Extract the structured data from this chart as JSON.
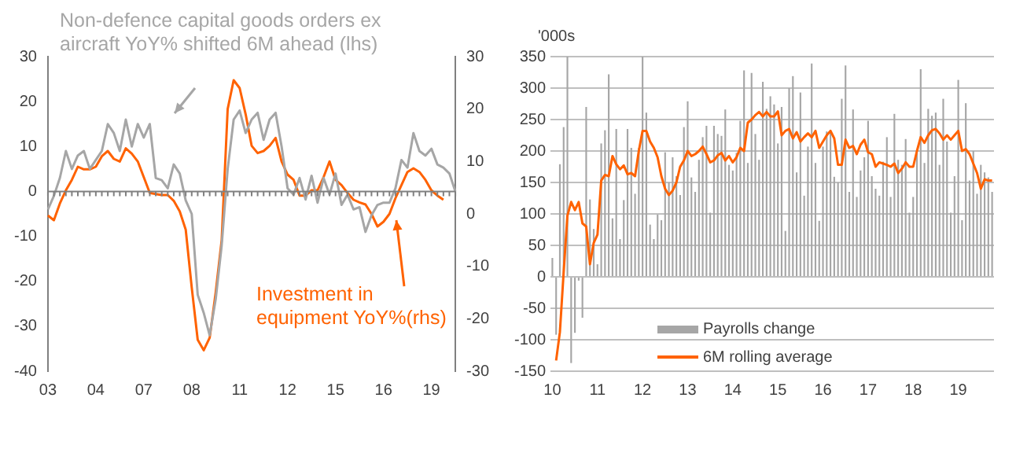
{
  "chart_data": [
    {
      "type": "line",
      "categories": [
        "03",
        null,
        null,
        null,
        null,
        null,
        null,
        null,
        "04",
        null,
        null,
        null,
        null,
        null,
        null,
        null,
        "07",
        null,
        null,
        null,
        null,
        null,
        null,
        null,
        "08",
        null,
        null,
        null,
        null,
        null,
        null,
        null,
        "11",
        null,
        null,
        null,
        null,
        null,
        null,
        null,
        "12",
        null,
        null,
        null,
        null,
        null,
        null,
        null,
        "15",
        null,
        null,
        null,
        null,
        null,
        null,
        null,
        "16",
        null,
        null,
        null,
        null,
        null,
        null,
        null,
        "19",
        null,
        null,
        null,
        null
      ],
      "series": [
        {
          "color": "#a6a6a6",
          "axis": "y",
          "values": [
            -4,
            -1,
            3,
            9,
            5,
            8,
            9,
            5,
            7,
            9,
            15,
            13,
            9,
            16,
            10,
            15,
            12,
            15,
            3,
            2.5,
            0.7,
            6,
            4,
            -2,
            -5,
            -23,
            -27,
            -32,
            -24,
            -12,
            5,
            16,
            18,
            13,
            16,
            17.5,
            11.5,
            16,
            17.5,
            10,
            0.7,
            -0.7,
            3,
            -1.8,
            3.5,
            -2.5,
            3,
            -0.7,
            4,
            -3,
            -0.7,
            -4,
            -3.5,
            -9,
            -5.3,
            -3,
            -2.5,
            -2.5,
            0.7,
            7,
            5.3,
            13,
            9,
            8,
            9.5,
            6,
            5.3,
            4,
            0
          ]
        },
        {
          "color": "#ff6200",
          "axis": "y2",
          "values": [
            -0.3,
            -1.2,
            2,
            4.5,
            6.5,
            9,
            8.5,
            8.5,
            9,
            11,
            12,
            10.5,
            10,
            12.5,
            11.5,
            10,
            7,
            4,
            3.8,
            3.6,
            3.6,
            2.5,
            0.5,
            -3,
            -14,
            -24,
            -26,
            -23.6,
            -15,
            -5,
            20,
            25.5,
            24,
            19,
            13,
            11.6,
            12,
            13,
            14.5,
            10,
            7.5,
            6.5,
            3.5,
            3.5,
            4.5,
            4.5,
            7,
            10,
            6.5,
            5.5,
            4,
            2.7,
            2.2,
            1.8,
            0,
            -2.4,
            -1.5,
            0,
            3,
            5.5,
            8,
            8.7,
            8,
            6.5,
            4.5,
            3.5,
            2.7,
            null,
            null
          ]
        }
      ],
      "ylim": [
        -40,
        30
      ],
      "yticks": [
        -40,
        -30,
        -20,
        -10,
        0,
        10,
        20,
        30
      ],
      "y2lim": [
        -30,
        30
      ],
      "y2ticks": [
        -30,
        -20,
        -10,
        0,
        10,
        20,
        30
      ],
      "ref_lines": [
        {
          "axis": "y",
          "value": 0
        }
      ],
      "annotations": [
        "Non-defence capital goods orders ex aircraft YoY% shifted 6M ahead (lhs)",
        "Investment in equipment YoY%(rhs)"
      ],
      "grid": false,
      "legend": false
    },
    {
      "type": "bar",
      "ylabel": "'000s",
      "categories": [
        "10",
        null,
        null,
        null,
        null,
        null,
        null,
        null,
        null,
        null,
        null,
        null,
        "11",
        null,
        null,
        null,
        null,
        null,
        null,
        null,
        null,
        null,
        null,
        null,
        "12",
        null,
        null,
        null,
        null,
        null,
        null,
        null,
        null,
        null,
        null,
        null,
        "13",
        null,
        null,
        null,
        null,
        null,
        null,
        null,
        null,
        null,
        null,
        null,
        "14",
        null,
        null,
        null,
        null,
        null,
        null,
        null,
        null,
        null,
        null,
        null,
        "15",
        null,
        null,
        null,
        null,
        null,
        null,
        null,
        null,
        null,
        null,
        null,
        "16",
        null,
        null,
        null,
        null,
        null,
        null,
        null,
        null,
        null,
        null,
        null,
        "17",
        null,
        null,
        null,
        null,
        null,
        null,
        null,
        null,
        null,
        null,
        null,
        "18",
        null,
        null,
        null,
        null,
        null,
        null,
        null,
        null,
        null,
        null,
        null,
        "19",
        null,
        null,
        null,
        null,
        null,
        null,
        null,
        null,
        null
      ],
      "series": [
        {
          "name": "Payrolls change",
          "type": "bar",
          "color": "#a6a6a6",
          "values": [
            30,
            -92,
            179,
            238,
            350,
            -137,
            -89,
            -6,
            -65,
            270,
            123,
            76,
            20,
            212,
            233,
            322,
            93,
            235,
            60,
            122,
            235,
            205,
            132,
            205,
            350,
            261,
            83,
            60,
            99,
            90,
            198,
            150,
            190,
            160,
            130,
            238,
            279,
            158,
            135,
            186,
            222,
            240,
            102,
            240,
            227,
            224,
            266,
            178,
            169,
            197,
            248,
            328,
            181,
            324,
            227,
            186,
            310,
            267,
            287,
            274,
            212,
            270,
            73,
            300,
            319,
            166,
            293,
            129,
            207,
            339,
            181,
            89,
            207,
            231,
            233,
            159,
            150,
            283,
            336,
            135,
            266,
            127,
            169,
            190,
            248,
            160,
            140,
            129,
            183,
            222,
            127,
            259,
            186,
            178,
            219,
            102,
            127,
            197,
            330,
            181,
            267,
            256,
            261,
            178,
            283,
            215,
            102,
            160,
            313,
            90,
            276,
            153,
            200,
            132,
            178,
            166,
            158,
            135
          ]
        },
        {
          "name": "6M rolling average",
          "type": "line",
          "color": "#ff6200",
          "values": [
            null,
            -133,
            -88,
            7,
            97,
            119,
            106,
            119,
            85,
            80,
            20,
            54,
            67,
            153,
            162,
            160,
            192,
            179,
            171,
            177,
            163,
            165,
            160,
            200,
            232,
            232,
            215,
            205,
            190,
            160,
            140,
            130,
            137,
            150,
            175,
            185,
            200,
            192,
            195,
            200,
            207,
            195,
            182,
            185,
            193,
            197,
            185,
            192,
            182,
            190,
            205,
            200,
            245,
            250,
            257,
            262,
            255,
            262,
            255,
            255,
            263,
            225,
            232,
            235,
            220,
            230,
            215,
            222,
            228,
            222,
            232,
            205,
            215,
            225,
            232,
            220,
            178,
            178,
            218,
            205,
            208,
            195,
            210,
            218,
            198,
            195,
            175,
            182,
            180,
            178,
            175,
            180,
            165,
            172,
            182,
            175,
            175,
            200,
            222,
            213,
            225,
            233,
            235,
            228,
            218,
            225,
            218,
            225,
            232,
            200,
            203,
            195,
            180,
            165,
            140,
            155,
            153,
            153
          ]
        }
      ],
      "ylim": [
        -150,
        350
      ],
      "yticks": [
        -150,
        -100,
        -50,
        0,
        50,
        100,
        150,
        200,
        250,
        300,
        350
      ],
      "grid": "y",
      "legend": "bottom"
    }
  ]
}
